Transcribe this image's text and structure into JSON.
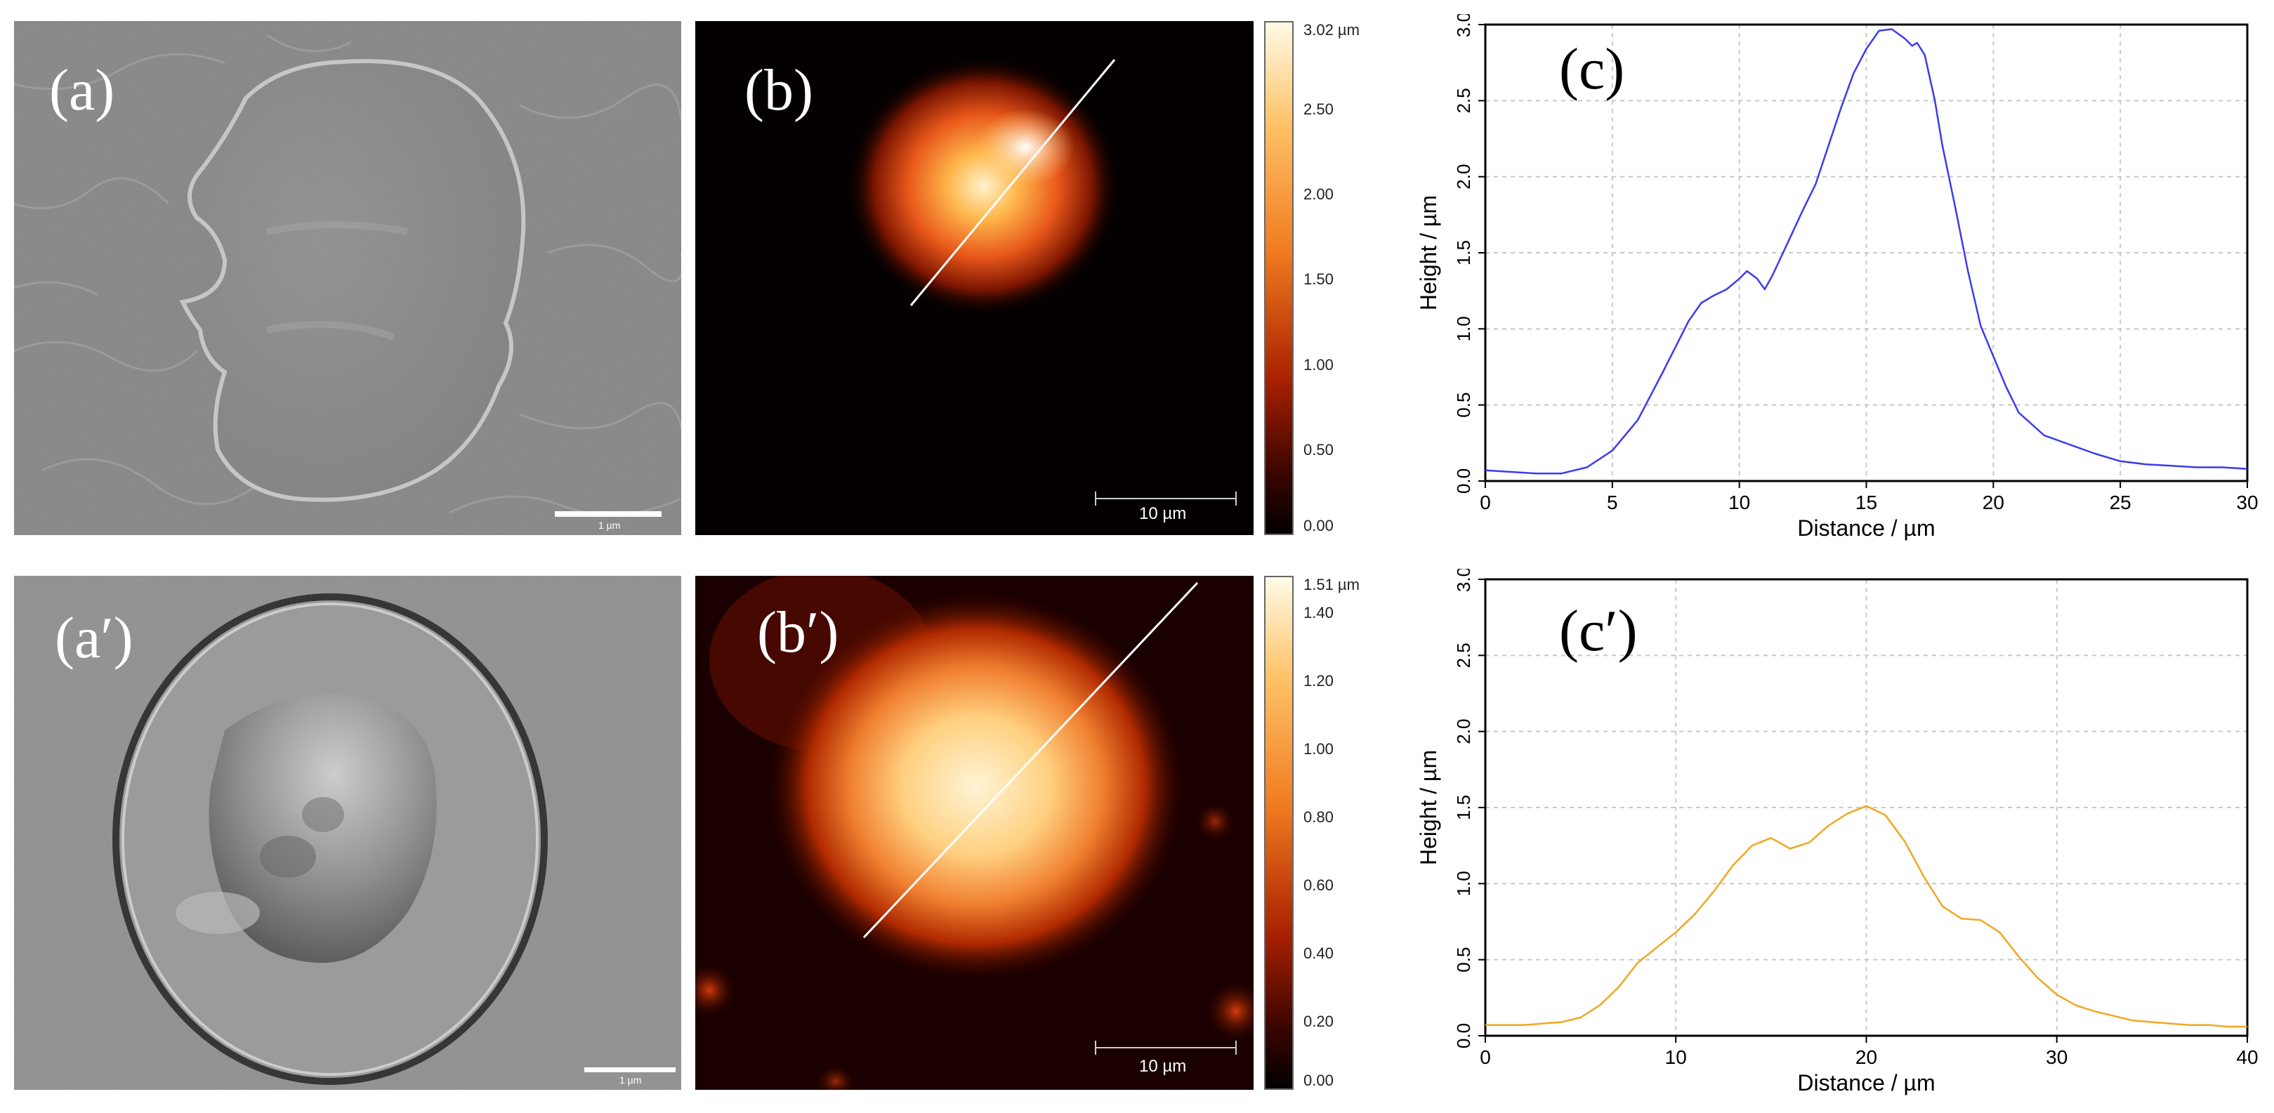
{
  "panels": {
    "a": {
      "label": "(a)",
      "scale": "1 µm"
    },
    "a_prime": {
      "label": "(a′)",
      "scale": "1 µm"
    },
    "b": {
      "label": "(b)",
      "scale": "10 µm",
      "colorbar": {
        "ticks": [
          "3.02 µm",
          "2.50",
          "2.00",
          "1.50",
          "1.00",
          "0.50",
          "0.00"
        ],
        "max": 3.02
      }
    },
    "b_prime": {
      "label": "(b′)",
      "scale": "10 µm",
      "colorbar": {
        "ticks": [
          "1.51 µm",
          "1.40",
          "1.20",
          "1.00",
          "0.80",
          "0.60",
          "0.40",
          "0.20",
          "0.00"
        ],
        "max": 1.51
      }
    }
  },
  "colors": {
    "line_c": "#3b3bf0",
    "line_c_prime": "#f0a820",
    "grid": "#c8c8c8"
  },
  "chart_data": [
    {
      "type": "line",
      "panel_label": "(c)",
      "xlabel": "Distance / µm",
      "ylabel": "Height / µm",
      "xlim": [
        0,
        30
      ],
      "ylim": [
        0,
        3.0
      ],
      "xticks": [
        "0",
        "5",
        "10",
        "15",
        "20",
        "25",
        "30"
      ],
      "yticks": [
        "0.0",
        "0.5",
        "1.0",
        "1.5",
        "2.0",
        "2.5",
        "3.0"
      ],
      "grid": true,
      "series": [
        {
          "color": "#3b3bf0",
          "x": [
            0,
            1,
            2,
            3,
            4,
            5,
            6,
            7,
            8,
            8.5,
            9,
            9.5,
            10,
            10.3,
            10.7,
            11,
            11.3,
            12,
            12.5,
            13,
            13.5,
            14,
            14.5,
            15,
            15.5,
            16,
            16.5,
            16.8,
            17,
            17.3,
            17.7,
            18,
            18.5,
            19,
            19.5,
            20,
            20.5,
            21,
            22,
            23,
            24,
            25,
            26,
            27,
            28,
            29,
            30
          ],
          "y": [
            0.07,
            0.06,
            0.05,
            0.05,
            0.09,
            0.2,
            0.4,
            0.72,
            1.05,
            1.17,
            1.22,
            1.26,
            1.33,
            1.38,
            1.33,
            1.26,
            1.35,
            1.6,
            1.78,
            1.95,
            2.2,
            2.45,
            2.68,
            2.84,
            2.96,
            2.97,
            2.91,
            2.86,
            2.88,
            2.8,
            2.5,
            2.2,
            1.8,
            1.38,
            1.02,
            0.82,
            0.62,
            0.45,
            0.3,
            0.24,
            0.18,
            0.13,
            0.11,
            0.1,
            0.09,
            0.09,
            0.08
          ]
        }
      ]
    },
    {
      "type": "line",
      "panel_label": "(c′)",
      "xlabel": "Distance / µm",
      "ylabel": "Height / µm",
      "xlim": [
        0,
        40
      ],
      "ylim": [
        0,
        3.0
      ],
      "xticks": [
        "0",
        "10",
        "20",
        "30",
        "40"
      ],
      "yticks": [
        "0.0",
        "0.5",
        "1.0",
        "1.5",
        "2.0",
        "2.5",
        "3.0"
      ],
      "grid": true,
      "series": [
        {
          "color": "#f0a820",
          "x": [
            0,
            2,
            4,
            5,
            6,
            7,
            8,
            9,
            10,
            11,
            12,
            13,
            14,
            15,
            16,
            17,
            18,
            19,
            20,
            21,
            22,
            23,
            24,
            25,
            26,
            27,
            28,
            29,
            30,
            31,
            32,
            33,
            34,
            35,
            36,
            37,
            38,
            39,
            40
          ],
          "y": [
            0.07,
            0.07,
            0.09,
            0.12,
            0.2,
            0.32,
            0.48,
            0.58,
            0.68,
            0.8,
            0.95,
            1.12,
            1.25,
            1.3,
            1.23,
            1.27,
            1.38,
            1.46,
            1.51,
            1.45,
            1.28,
            1.05,
            0.85,
            0.77,
            0.76,
            0.68,
            0.52,
            0.38,
            0.27,
            0.2,
            0.16,
            0.13,
            0.1,
            0.09,
            0.08,
            0.07,
            0.07,
            0.06,
            0.06
          ]
        }
      ]
    }
  ]
}
